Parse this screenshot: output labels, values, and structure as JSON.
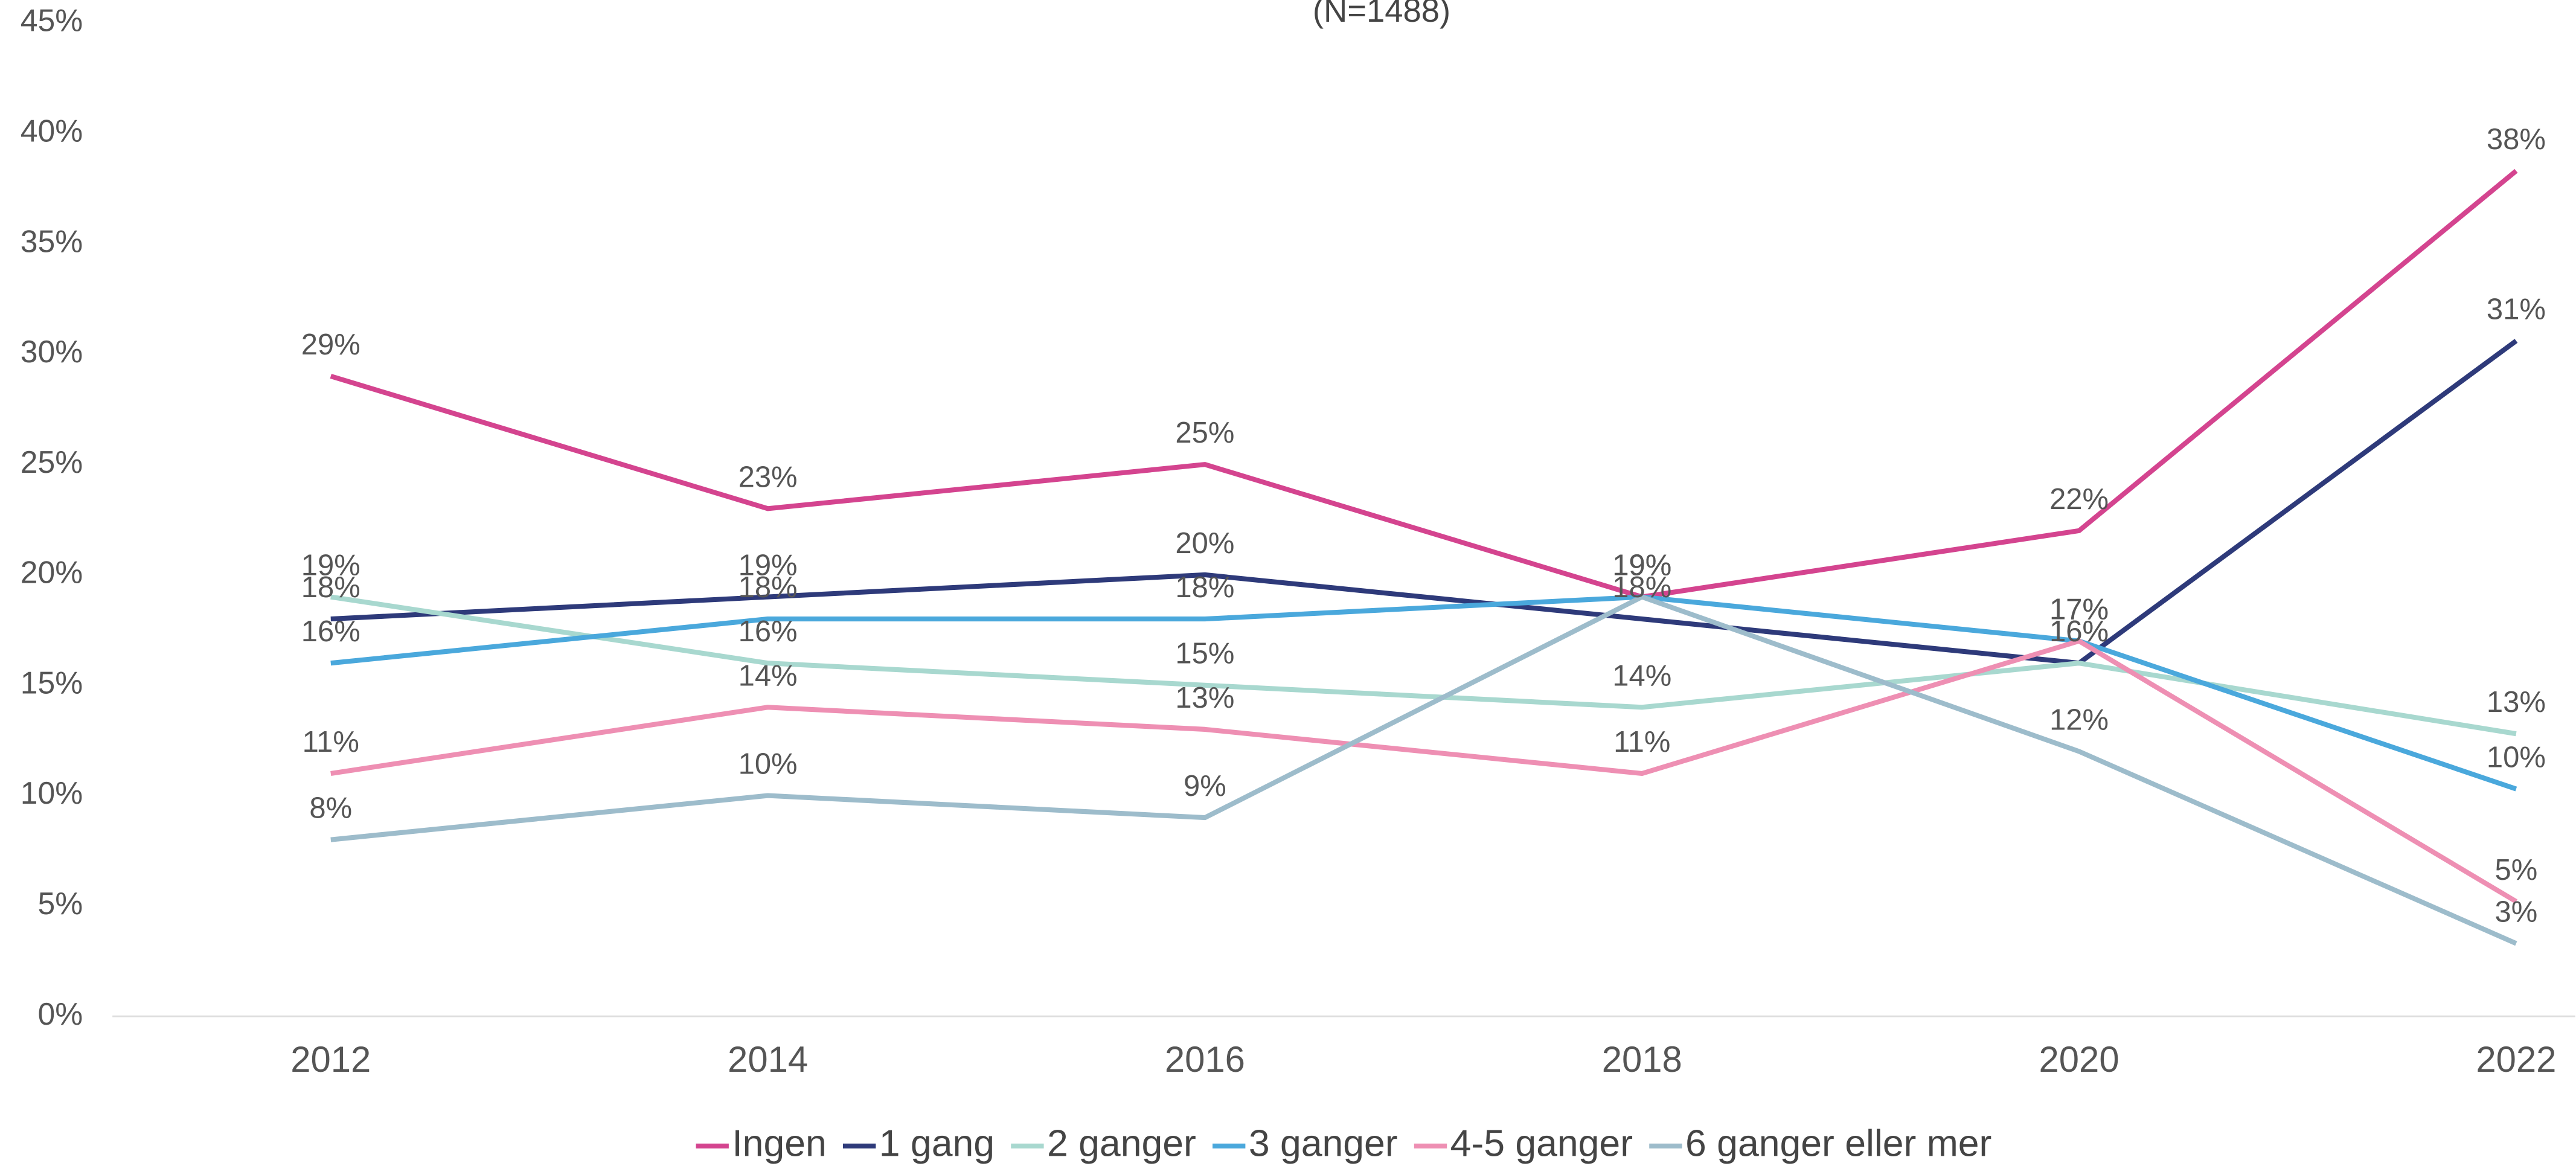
{
  "chart_data": {
    "type": "line",
    "subtitle": "(N=1488)",
    "categories": [
      "2012",
      "2014",
      "2016",
      "2018",
      "2020",
      "2022"
    ],
    "ylim": [
      0,
      45
    ],
    "yticks": [
      {
        "value": 0,
        "label": "0%"
      },
      {
        "value": 5,
        "label": "5%"
      },
      {
        "value": 10,
        "label": "10%"
      },
      {
        "value": 15,
        "label": "15%"
      },
      {
        "value": 20,
        "label": "20%"
      },
      {
        "value": 25,
        "label": "25%"
      },
      {
        "value": 30,
        "label": "30%"
      },
      {
        "value": 35,
        "label": "35%"
      },
      {
        "value": 40,
        "label": "40%"
      },
      {
        "value": 45,
        "label": "45%"
      }
    ],
    "grid": false,
    "legend": "bottom",
    "series": [
      {
        "name": "Ingen",
        "color": "#d4448f",
        "values": [
          29,
          23,
          25,
          19,
          22,
          38.3
        ],
        "value_labels": [
          "29%",
          "23%",
          "25%",
          "19%",
          "22%",
          "38%"
        ]
      },
      {
        "name": "1 gang",
        "color": "#2e3a7a",
        "values": [
          18,
          19,
          20,
          18,
          16,
          30.6
        ],
        "value_labels": [
          "18%",
          "19%",
          "20%",
          "18%",
          "16%",
          "31%"
        ]
      },
      {
        "name": "2 ganger",
        "color": "#a8d8cf",
        "values": [
          19,
          16,
          15,
          14,
          16,
          12.8
        ],
        "value_labels": [
          "19%",
          "16%",
          "15%",
          "14%",
          "16%",
          "13%"
        ]
      },
      {
        "name": "3 ganger",
        "color": "#4aa8dc",
        "values": [
          16,
          18,
          18,
          19,
          17,
          10.3
        ],
        "value_labels": [
          "16%",
          "18%",
          "18%",
          "19%",
          "17%",
          "10%"
        ]
      },
      {
        "name": "4-5 ganger",
        "color": "#ee8fb3",
        "values": [
          11,
          14,
          13,
          11,
          17,
          5.2
        ],
        "value_labels": [
          "11%",
          "14%",
          "13%",
          "11%",
          "17%",
          "5%"
        ]
      },
      {
        "name": "6 ganger eller mer",
        "color": "#9dbccb",
        "values": [
          8,
          10,
          9,
          19,
          12,
          3.3
        ],
        "value_labels": [
          "8%",
          "10%",
          "9%",
          "19%",
          "12%",
          "3%"
        ]
      }
    ]
  }
}
